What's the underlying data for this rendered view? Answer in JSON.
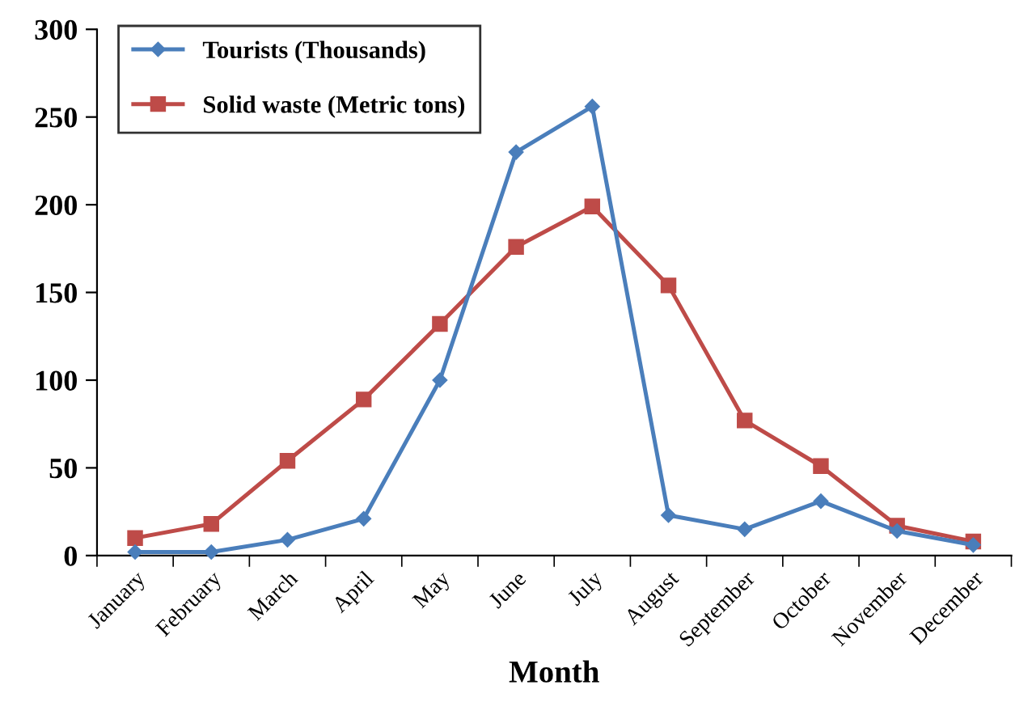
{
  "chart_data": {
    "type": "line",
    "xlabel": "Month",
    "categories": [
      "January",
      "February",
      "March",
      "April",
      "May",
      "June",
      "July",
      "August",
      "September",
      "October",
      "November",
      "December"
    ],
    "series": [
      {
        "name": "Tourists (Thousands)",
        "color": "#4a7ebb",
        "marker": "diamond",
        "values": [
          2,
          2,
          9,
          21,
          100,
          230,
          256,
          23,
          15,
          31,
          14,
          6
        ]
      },
      {
        "name": "Solid waste (Metric tons)",
        "color": "#be4b48",
        "marker": "square",
        "values": [
          10,
          18,
          54,
          89,
          132,
          176,
          199,
          154,
          77,
          51,
          17,
          8
        ]
      }
    ],
    "ylim": [
      0,
      300
    ],
    "yticks": [
      0,
      50,
      100,
      150,
      200,
      250,
      300
    ],
    "grid": false,
    "legend": "top left"
  }
}
